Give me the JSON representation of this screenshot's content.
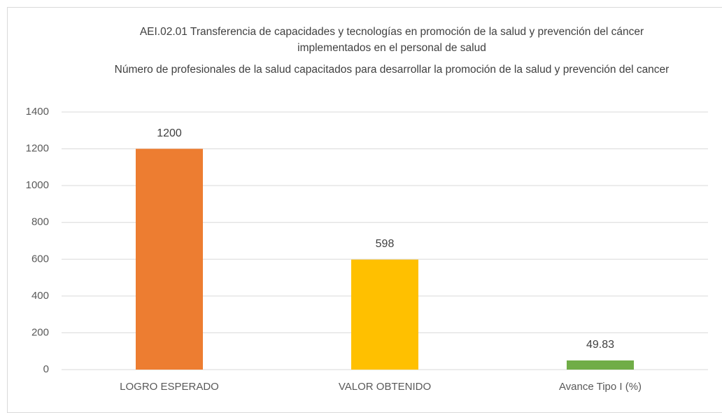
{
  "chart_data": {
    "type": "bar",
    "title": "AEI.02.01 Transferencia de capacidades y tecnologías en promoción de la salud y prevención del cáncer implementados en el personal de salud",
    "subtitle": "Número de profesionales de la salud capacitados para desarrollar la promoción de la salud y prevención del cancer",
    "categories": [
      "LOGRO ESPERADO",
      "VALOR OBTENIDO",
      "Avance Tipo I (%)"
    ],
    "values": [
      1200,
      598,
      49.83
    ],
    "colors": [
      "#ed7d31",
      "#ffc000",
      "#70ad47"
    ],
    "ylim": [
      0,
      1400
    ],
    "yticks": [
      0,
      200,
      400,
      600,
      800,
      1000,
      1200,
      1400
    ],
    "grid": true
  }
}
